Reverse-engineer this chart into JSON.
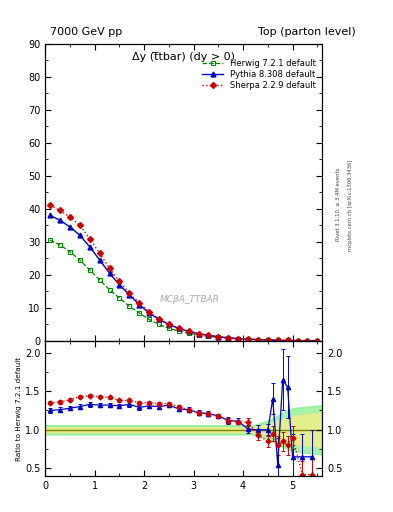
{
  "title_left": "7000 GeV pp",
  "title_right": "Top (parton level)",
  "right_label_1": "Rivet 3.1.10, ≥ 3.4M events",
  "right_label_2": "mcplots.cern.ch [arXiv:1306.3436]",
  "watermark": "MCβA_TTBAR",
  "plot_title": "Δy (t̅tbar) (dy > 0)",
  "ylabel_ratio": "Ratio to Herwig 7.2.1 default",
  "herwig_x": [
    0.1,
    0.3,
    0.5,
    0.7,
    0.9,
    1.1,
    1.3,
    1.5,
    1.7,
    1.9,
    2.1,
    2.3,
    2.5,
    2.7,
    2.9,
    3.1,
    3.3,
    3.5,
    3.7,
    3.9,
    4.1,
    4.3,
    4.5,
    4.7,
    4.9,
    5.1,
    5.3,
    5.5
  ],
  "herwig_y": [
    30.5,
    29.0,
    27.0,
    24.5,
    21.5,
    18.5,
    15.5,
    13.0,
    10.5,
    8.5,
    6.5,
    5.0,
    3.8,
    3.0,
    2.3,
    1.8,
    1.4,
    1.1,
    0.85,
    0.65,
    0.5,
    0.38,
    0.28,
    0.2,
    0.14,
    0.09,
    0.06,
    0.04
  ],
  "pythia_x": [
    0.1,
    0.3,
    0.5,
    0.7,
    0.9,
    1.1,
    1.3,
    1.5,
    1.7,
    1.9,
    2.1,
    2.3,
    2.5,
    2.7,
    2.9,
    3.1,
    3.3,
    3.5,
    3.7,
    3.9,
    4.1,
    4.3,
    4.5,
    4.7,
    4.9,
    5.1,
    5.3,
    5.5
  ],
  "pythia_y": [
    38.0,
    36.5,
    34.5,
    32.0,
    28.5,
    24.5,
    20.5,
    17.0,
    14.0,
    11.0,
    8.5,
    6.5,
    5.0,
    3.8,
    2.9,
    2.2,
    1.7,
    1.3,
    0.95,
    0.72,
    0.55,
    0.42,
    0.3,
    0.22,
    0.16,
    0.11,
    0.07,
    0.05
  ],
  "sherpa_x": [
    0.1,
    0.3,
    0.5,
    0.7,
    0.9,
    1.1,
    1.3,
    1.5,
    1.7,
    1.9,
    2.1,
    2.3,
    2.5,
    2.7,
    2.9,
    3.1,
    3.3,
    3.5,
    3.7,
    3.9,
    4.1,
    4.3,
    4.5,
    4.7,
    4.9,
    5.1,
    5.3,
    5.5
  ],
  "sherpa_y": [
    41.0,
    39.5,
    37.5,
    35.0,
    31.0,
    26.5,
    22.0,
    18.0,
    14.5,
    11.5,
    8.8,
    6.7,
    5.1,
    3.9,
    2.9,
    2.2,
    1.7,
    1.3,
    0.95,
    0.72,
    0.55,
    0.42,
    0.3,
    0.22,
    0.16,
    0.11,
    0.07,
    0.05
  ],
  "ratio_pythia_x": [
    0.1,
    0.3,
    0.5,
    0.7,
    0.9,
    1.1,
    1.3,
    1.5,
    1.7,
    1.9,
    2.1,
    2.3,
    2.5,
    2.7,
    2.9,
    3.1,
    3.3,
    3.5,
    3.7,
    3.9,
    4.1,
    4.3,
    4.5,
    4.6,
    4.7,
    4.8,
    4.9,
    5.0,
    5.2,
    5.4
  ],
  "ratio_pythia_y": [
    1.25,
    1.26,
    1.28,
    1.3,
    1.33,
    1.32,
    1.32,
    1.31,
    1.33,
    1.29,
    1.31,
    1.3,
    1.32,
    1.27,
    1.26,
    1.22,
    1.21,
    1.18,
    1.12,
    1.11,
    1.01,
    1.0,
    1.0,
    1.4,
    0.55,
    1.65,
    1.55,
    0.65,
    0.65,
    0.65
  ],
  "ratio_pythia_err": [
    0.03,
    0.03,
    0.03,
    0.03,
    0.03,
    0.03,
    0.03,
    0.03,
    0.03,
    0.03,
    0.03,
    0.03,
    0.03,
    0.03,
    0.03,
    0.03,
    0.03,
    0.03,
    0.04,
    0.04,
    0.05,
    0.06,
    0.07,
    0.2,
    0.35,
    0.4,
    0.4,
    0.3,
    0.3,
    0.35
  ],
  "ratio_sherpa_x": [
    0.1,
    0.3,
    0.5,
    0.7,
    0.9,
    1.1,
    1.3,
    1.5,
    1.7,
    1.9,
    2.1,
    2.3,
    2.5,
    2.7,
    2.9,
    3.1,
    3.3,
    3.5,
    3.7,
    3.9,
    4.1,
    4.3,
    4.5,
    4.6,
    4.7,
    4.8,
    4.9,
    5.0,
    5.2,
    5.4
  ],
  "ratio_sherpa_y": [
    1.35,
    1.36,
    1.39,
    1.43,
    1.44,
    1.43,
    1.42,
    1.38,
    1.38,
    1.35,
    1.35,
    1.34,
    1.34,
    1.3,
    1.26,
    1.22,
    1.21,
    1.18,
    1.12,
    1.1,
    1.1,
    0.93,
    0.85,
    0.95,
    0.8,
    0.85,
    0.8,
    0.9,
    0.42,
    0.42
  ],
  "ratio_sherpa_err": [
    0.02,
    0.02,
    0.02,
    0.02,
    0.02,
    0.02,
    0.02,
    0.02,
    0.02,
    0.02,
    0.02,
    0.02,
    0.02,
    0.02,
    0.02,
    0.02,
    0.02,
    0.02,
    0.03,
    0.03,
    0.05,
    0.06,
    0.07,
    0.1,
    0.12,
    0.12,
    0.12,
    0.15,
    0.18,
    0.2
  ],
  "ylim_main": [
    0,
    90
  ],
  "ylim_ratio": [
    0.4,
    2.15
  ],
  "xlim": [
    0,
    5.6
  ],
  "herwig_color": "#008800",
  "pythia_color": "#0000cc",
  "sherpa_color": "#cc0000",
  "green_band_color": "#88ee88",
  "yellow_band_color": "#eeee88",
  "background_color": "#ffffff"
}
